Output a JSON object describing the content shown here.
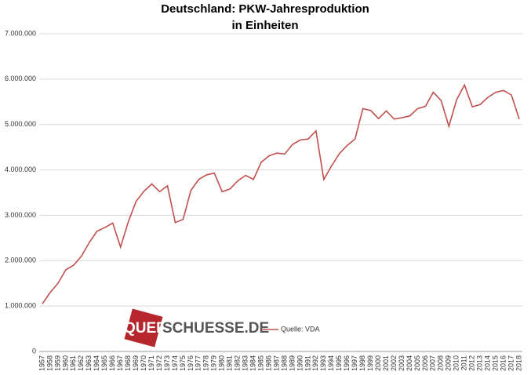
{
  "chart_data": {
    "type": "line",
    "title": "Deutschland: PKW-Jahresproduktion",
    "subtitle": "in Einheiten",
    "watermark": [
      "QUER",
      "SCHUESSE.DE"
    ],
    "categories": [
      "1957",
      "1958",
      "1959",
      "1960",
      "1961",
      "1962",
      "1963",
      "1964",
      "1965",
      "1966",
      "1967",
      "1968",
      "1969",
      "1970",
      "1971",
      "1972",
      "1973",
      "1974",
      "1975",
      "1976",
      "1977",
      "1978",
      "1979",
      "1980",
      "1981",
      "1982",
      "1983",
      "1984",
      "1985",
      "1986",
      "1987",
      "1988",
      "1989",
      "1990",
      "1991",
      "1992",
      "1993",
      "1994",
      "1995",
      "1996",
      "1997",
      "1998",
      "1999",
      "2000",
      "2001",
      "2002",
      "2003",
      "2004",
      "2005",
      "2006",
      "2007",
      "2008",
      "2009",
      "2010",
      "2011",
      "2012",
      "2013",
      "2014",
      "2015",
      "2016",
      "2017",
      "2018"
    ],
    "series": [
      {
        "name": "Quelle: VDA",
        "color": "#c0504d",
        "values": [
          1050000,
          1300000,
          1500000,
          1800000,
          1900000,
          2100000,
          2400000,
          2650000,
          2730000,
          2830000,
          2300000,
          2860000,
          3310000,
          3530000,
          3690000,
          3520000,
          3650000,
          2840000,
          2910000,
          3550000,
          3790000,
          3890000,
          3930000,
          3520000,
          3580000,
          3760000,
          3880000,
          3790000,
          4170000,
          4310000,
          4370000,
          4350000,
          4560000,
          4660000,
          4680000,
          4860000,
          3790000,
          4090000,
          4360000,
          4540000,
          4680000,
          5350000,
          5310000,
          5130000,
          5300000,
          5120000,
          5150000,
          5190000,
          5350000,
          5400000,
          5710000,
          5530000,
          4960000,
          5550000,
          5870000,
          5390000,
          5440000,
          5600000,
          5710000,
          5750000,
          5650000,
          5120000
        ]
      }
    ],
    "ylim": [
      0,
      7000000
    ],
    "yticks": [
      0,
      {
        "value": 1000000,
        "label": "1.000.000"
      },
      {
        "value": 2000000,
        "label": "2.000.000"
      },
      {
        "value": 3000000,
        "label": "3.000.000"
      },
      {
        "value": 4000000,
        "label": "4.000.000"
      },
      {
        "value": 5000000,
        "label": "5.000.000"
      },
      {
        "value": 6000000,
        "label": "6.000.000"
      },
      {
        "value": 7000000,
        "label": "7.000.000"
      }
    ],
    "grid": true,
    "legend": "bottom"
  }
}
